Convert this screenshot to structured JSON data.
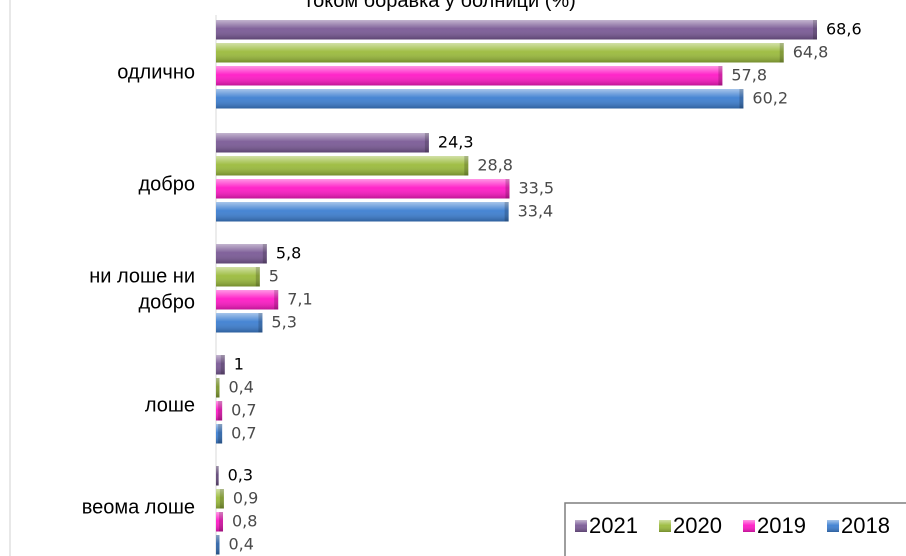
{
  "chart_data": {
    "type": "bar",
    "orientation": "horizontal",
    "title": "током боравка у болници (%)",
    "categories": [
      "одлично",
      "добро",
      "ни лоше ни добро",
      "лоше",
      "веома лоше"
    ],
    "series": [
      {
        "name": "2021",
        "values": [
          68.6,
          24.3,
          5.8,
          1,
          0.3
        ],
        "labels": [
          "68,6",
          "24,3",
          "5,8",
          "1",
          "0,3"
        ],
        "color": "#7a5a96",
        "label_color": "#000000"
      },
      {
        "name": "2020",
        "values": [
          64.8,
          28.8,
          5,
          0.4,
          0.9
        ],
        "labels": [
          "64,8",
          "28,8",
          "5",
          "0,4",
          "0,9"
        ],
        "color": "#9bbb3c",
        "label_color": "#4a4a4a"
      },
      {
        "name": "2019",
        "values": [
          57.8,
          33.5,
          7.1,
          0.7,
          0.8
        ],
        "labels": [
          "57,8",
          "33,5",
          "7,1",
          "0,7",
          "0,8"
        ],
        "color": "#ff1ac6",
        "label_color": "#4a4a4a"
      },
      {
        "name": "2018",
        "values": [
          60.2,
          33.4,
          5.3,
          0.7,
          0.4
        ],
        "labels": [
          "60,2",
          "33,4",
          "5,3",
          "0,7",
          "0,4"
        ],
        "color": "#3d7fd1",
        "label_color": "#4a4a4a"
      }
    ],
    "xlim": [
      0,
      75
    ],
    "grid": false,
    "legend_position": "bottom-right"
  }
}
